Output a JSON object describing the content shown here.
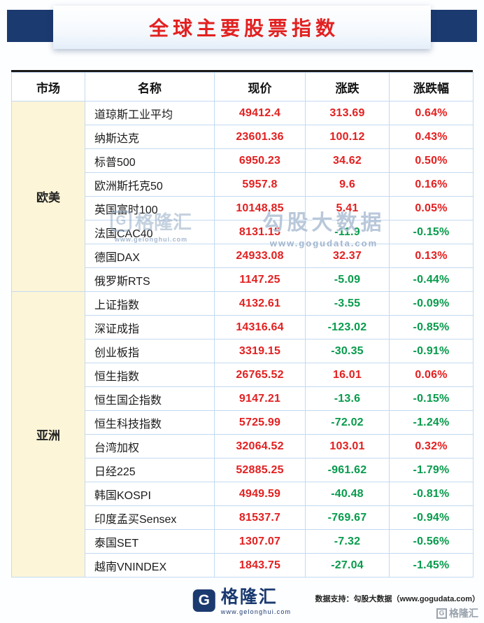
{
  "colors": {
    "navy": "#1b3a70",
    "red": "#e22020",
    "green": "#089b4c",
    "cream": "#fcf5d8",
    "grid": "#c3daf1"
  },
  "chart_data": {
    "type": "table",
    "title": "全球主要股票指数",
    "columns": [
      "市场",
      "名称",
      "现价",
      "涨跌",
      "涨跌幅"
    ],
    "market_groups": [
      "欧美",
      "亚洲"
    ],
    "rows": [
      [
        "欧美",
        "道琼斯工业平均",
        49412.4,
        313.69,
        "0.64%"
      ],
      [
        "欧美",
        "纳斯达克",
        23601.36,
        100.12,
        "0.43%"
      ],
      [
        "欧美",
        "标普500",
        6950.23,
        34.62,
        "0.50%"
      ],
      [
        "欧美",
        "欧洲斯托克50",
        5957.8,
        9.6,
        "0.16%"
      ],
      [
        "欧美",
        "英国富时100",
        10148.85,
        5.41,
        "0.05%"
      ],
      [
        "欧美",
        "法国CAC40",
        8131.15,
        -11.9,
        "-0.15%"
      ],
      [
        "欧美",
        "德国DAX",
        24933.08,
        32.37,
        "0.13%"
      ],
      [
        "欧美",
        "俄罗斯RTS",
        1147.25,
        -5.09,
        "-0.44%"
      ],
      [
        "亚洲",
        "上证指数",
        4132.61,
        -3.55,
        "-0.09%"
      ],
      [
        "亚洲",
        "深证成指",
        14316.64,
        -123.02,
        "-0.85%"
      ],
      [
        "亚洲",
        "创业板指",
        3319.15,
        -30.35,
        "-0.91%"
      ],
      [
        "亚洲",
        "恒生指数",
        26765.52,
        16.01,
        "0.06%"
      ],
      [
        "亚洲",
        "恒生国企指数",
        9147.21,
        -13.6,
        "-0.15%"
      ],
      [
        "亚洲",
        "恒生科技指数",
        5725.99,
        -72.02,
        "-1.24%"
      ],
      [
        "亚洲",
        "台湾加权",
        32064.52,
        103.01,
        "0.32%"
      ],
      [
        "亚洲",
        "日经225",
        52885.25,
        -961.62,
        "-1.79%"
      ],
      [
        "亚洲",
        "韩国KOSPI",
        4949.59,
        -40.48,
        "-0.81%"
      ],
      [
        "亚洲",
        "印度孟买Sensex",
        81537.7,
        -769.67,
        "-0.94%"
      ],
      [
        "亚洲",
        "泰国SET",
        1307.07,
        -7.32,
        "-0.56%"
      ],
      [
        "亚洲",
        "越南VNINDEX",
        1843.75,
        -27.04,
        "-1.45%"
      ]
    ]
  },
  "watermarks": {
    "center_text": "勾股大数据",
    "center_url": "www.gogudata.com",
    "left_brand": "格隆汇",
    "left_url": "www.gelonghui.com",
    "logo_letter": "G"
  },
  "footer": {
    "brand": "格隆汇",
    "site": "www.gelonghui.com",
    "support": "数据支持：勾股大数据（www.gogudata.com）",
    "corner_brand": "格隆汇",
    "logo_letter": "G"
  }
}
